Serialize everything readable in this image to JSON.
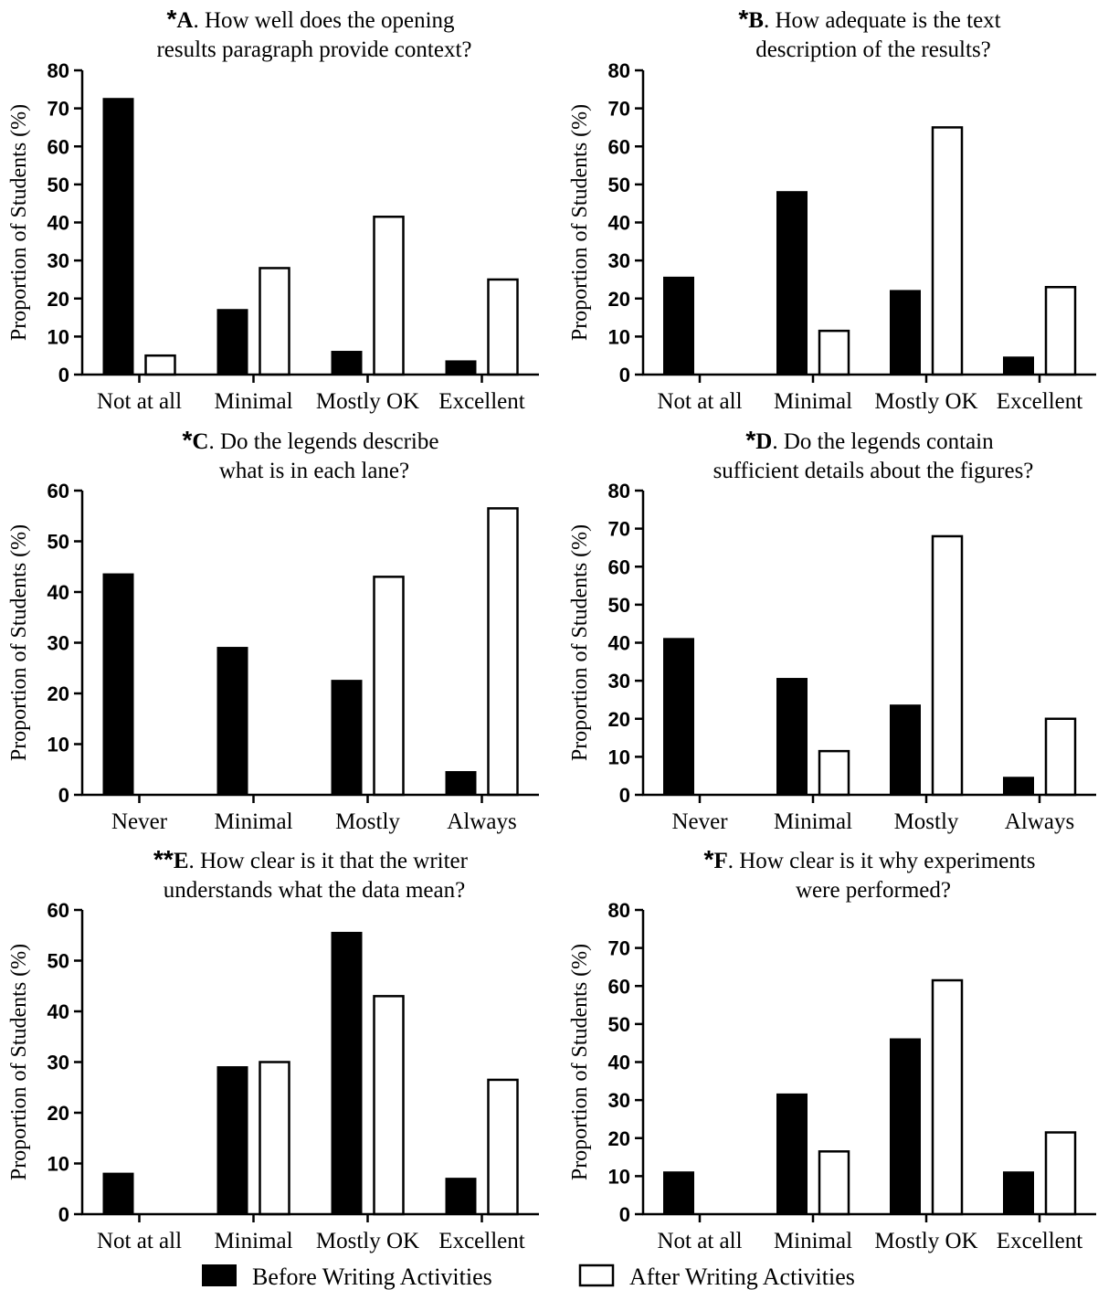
{
  "legend": {
    "before": "Before Writing Activities",
    "after": "After Writing Activities"
  },
  "colors": {
    "before": "#000000",
    "after": "#ffffff",
    "axis": "#000000"
  },
  "chart_data": [
    {
      "type": "bar",
      "panel": "A",
      "stars": "*",
      "title_line1": "How well does the opening",
      "title_line2": "results paragraph provide context?",
      "ylabel": "Proportion of Students (%)",
      "ylim": [
        0,
        80
      ],
      "yticks": [
        0,
        10,
        20,
        30,
        40,
        50,
        60,
        70,
        80
      ],
      "categories": [
        "Not at all",
        "Minimal",
        "Mostly OK",
        "Excellent"
      ],
      "series": [
        {
          "name": "Before Writing Activities",
          "values": [
            72.5,
            17,
            6,
            3.5
          ]
        },
        {
          "name": "After Writing Activities",
          "values": [
            5,
            28,
            41.5,
            25
          ]
        }
      ]
    },
    {
      "type": "bar",
      "panel": "B",
      "stars": "*",
      "title_line1": "How adequate is the text",
      "title_line2": "description of the results?",
      "ylabel": "Proportion of Students (%)",
      "ylim": [
        0,
        80
      ],
      "yticks": [
        0,
        10,
        20,
        30,
        40,
        50,
        60,
        70,
        80
      ],
      "categories": [
        "Not at all",
        "Minimal",
        "Mostly OK",
        "Excellent"
      ],
      "series": [
        {
          "name": "Before Writing Activities",
          "values": [
            25.5,
            48,
            22,
            4.5
          ]
        },
        {
          "name": "After Writing Activities",
          "values": [
            0,
            11.5,
            65,
            23
          ]
        }
      ]
    },
    {
      "type": "bar",
      "panel": "C",
      "stars": "*",
      "title_line1": "Do the legends describe",
      "title_line2": "what is in each lane?",
      "ylabel": "Proportion of Students (%)",
      "ylim": [
        0,
        60
      ],
      "yticks": [
        0,
        10,
        20,
        30,
        40,
        50,
        60
      ],
      "categories": [
        "Never",
        "Minimal",
        "Mostly",
        "Always"
      ],
      "series": [
        {
          "name": "Before Writing Activities",
          "values": [
            43.5,
            29,
            22.5,
            4.5
          ]
        },
        {
          "name": "After Writing Activities",
          "values": [
            0,
            0,
            43,
            56.5
          ]
        }
      ]
    },
    {
      "type": "bar",
      "panel": "D",
      "stars": "*",
      "title_line1": "Do the legends contain",
      "title_line2": "sufficient details about the figures?",
      "ylabel": "Proportion of Students (%)",
      "ylim": [
        0,
        80
      ],
      "yticks": [
        0,
        10,
        20,
        30,
        40,
        50,
        60,
        70,
        80
      ],
      "categories": [
        "Never",
        "Minimal",
        "Mostly",
        "Always"
      ],
      "series": [
        {
          "name": "Before Writing Activities",
          "values": [
            41,
            30.5,
            23.5,
            4.5
          ]
        },
        {
          "name": "After Writing Activities",
          "values": [
            0,
            11.5,
            68,
            20
          ]
        }
      ]
    },
    {
      "type": "bar",
      "panel": "E",
      "stars": "**",
      "title_line1": "How clear is it that the writer",
      "title_line2": "understands what the data mean?",
      "ylabel": "Proportion of Students (%)",
      "ylim": [
        0,
        60
      ],
      "yticks": [
        0,
        10,
        20,
        30,
        40,
        50,
        60
      ],
      "categories": [
        "Not at all",
        "Minimal",
        "Mostly OK",
        "Excellent"
      ],
      "series": [
        {
          "name": "Before Writing Activities",
          "values": [
            8,
            29,
            55.5,
            7
          ]
        },
        {
          "name": "After Writing Activities",
          "values": [
            0,
            30,
            43,
            26.5
          ]
        }
      ]
    },
    {
      "type": "bar",
      "panel": "F",
      "stars": "*",
      "title_line1": "How clear is it why experiments",
      "title_line2": "were performed?",
      "ylabel": "Proportion of Students (%)",
      "ylim": [
        0,
        80
      ],
      "yticks": [
        0,
        10,
        20,
        30,
        40,
        50,
        60,
        70,
        80
      ],
      "categories": [
        "Not at all",
        "Minimal",
        "Mostly OK",
        "Excellent"
      ],
      "series": [
        {
          "name": "Before Writing Activities",
          "values": [
            11,
            31.5,
            46,
            11
          ]
        },
        {
          "name": "After Writing Activities",
          "values": [
            0,
            16.5,
            61.5,
            21.5
          ]
        }
      ]
    }
  ]
}
